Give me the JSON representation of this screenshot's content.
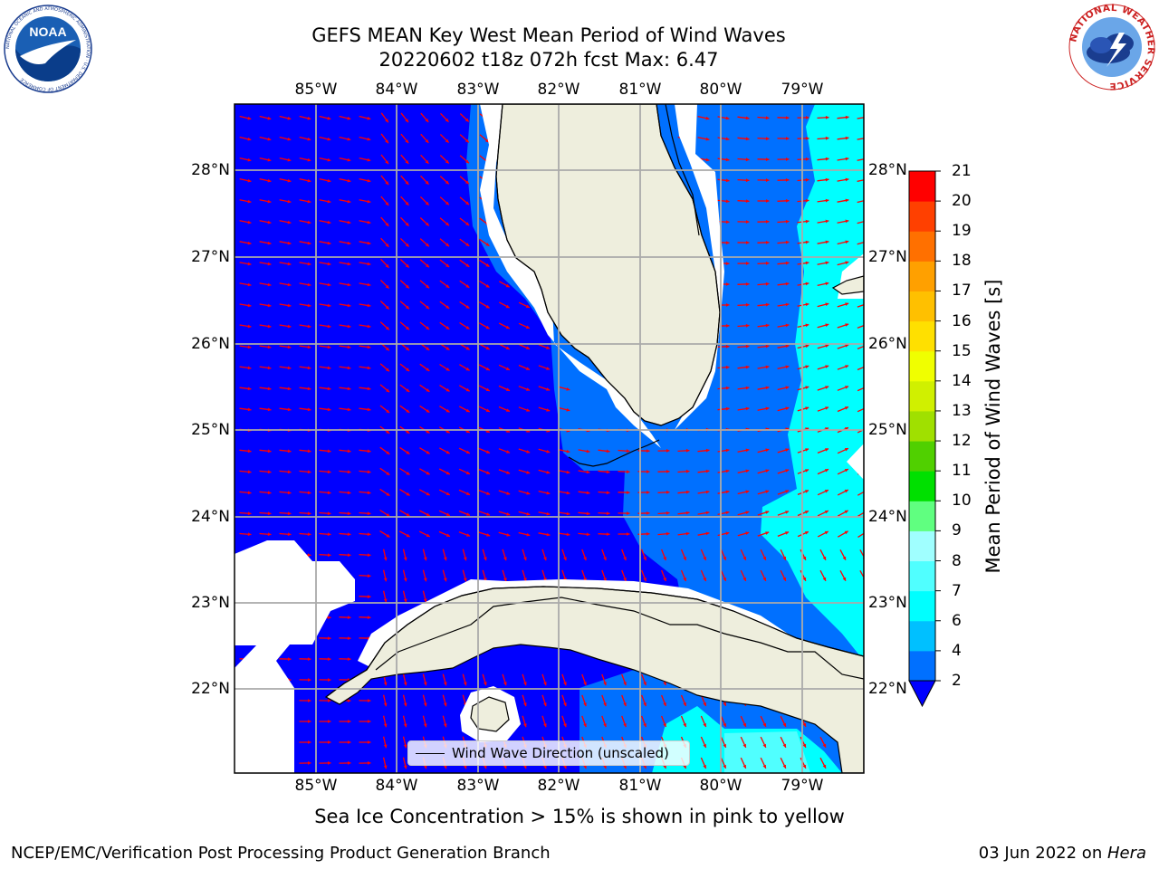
{
  "header": {
    "title_line1": "GEFS MEAN Key West Mean Period of Wind Waves",
    "title_line2": "20220602 t18z 072h fcst   Max: 6.47"
  },
  "logos": {
    "noaa_text": "NOAA",
    "noaa_ring_text": "NATIONAL OCEANIC AND ATMOSPHERIC ADMINISTRATION · U.S. DEPARTMENT OF COMMERCE",
    "nws_ring_text": "NATIONAL WEATHER SERVICE"
  },
  "map": {
    "lon_labels": [
      "85°W",
      "84°W",
      "83°W",
      "82°W",
      "81°W",
      "80°W",
      "79°W"
    ],
    "lat_labels": [
      "28°N",
      "27°N",
      "26°N",
      "25°N",
      "24°N",
      "23°N",
      "22°N"
    ],
    "legend_text": "Wind Wave Direction (unscaled)"
  },
  "colorbar": {
    "title": "Mean Period of Wind Waves [s]",
    "ticks": [
      "2",
      "4",
      "6",
      "7",
      "8",
      "9",
      "10",
      "11",
      "12",
      "13",
      "14",
      "15",
      "16",
      "17",
      "18",
      "19",
      "20",
      "21"
    ],
    "colors": [
      "#0070ff",
      "#00c0ff",
      "#00ffff",
      "#50ffff",
      "#a0ffff",
      "#60ff80",
      "#00e000",
      "#50d000",
      "#a0e000",
      "#d0f000",
      "#f0ff00",
      "#ffe000",
      "#ffc000",
      "#ffa000",
      "#ff7000",
      "#ff4000",
      "#ff0000"
    ],
    "underflow_color": "#0000ff"
  },
  "colors": {
    "ocean_deep": "#0000ff",
    "ocean_mid": "#0070ff",
    "ocean_light": "#00ffff",
    "ocean_pale": "#50ffff",
    "land": "#eeeedd",
    "arrow": "#ff0000"
  },
  "caption": "Sea Ice Concentration > 15% is shown in pink to yellow",
  "footer": {
    "left": "NCEP/EMC/Verification Post Processing Product Generation Branch",
    "right_date": "03 Jun 2022 on ",
    "right_host": "Hera"
  }
}
